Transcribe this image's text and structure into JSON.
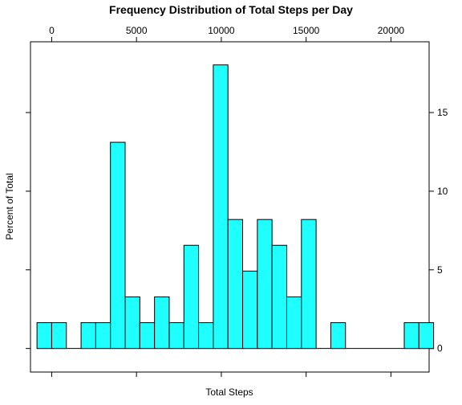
{
  "chart_data": {
    "type": "bar",
    "title": "Frequency Distribution of Total Steps per Day",
    "xlabel": "Total Steps",
    "ylabel": "Percent of Total",
    "bar_color": "#20ffff",
    "xlim": [
      -1250,
      22250
    ],
    "ylim": [
      -1.5,
      19.5
    ],
    "xticks": [
      0,
      5000,
      10000,
      15000,
      20000
    ],
    "yticks": [
      0,
      5,
      10,
      15
    ],
    "bin_width": 866,
    "bins": [
      {
        "start": -866,
        "end": 0,
        "value": 1.64
      },
      {
        "start": 0,
        "end": 866,
        "value": 1.64
      },
      {
        "start": 1732,
        "end": 2598,
        "value": 1.64
      },
      {
        "start": 2598,
        "end": 3464,
        "value": 1.64
      },
      {
        "start": 3464,
        "end": 4330,
        "value": 13.11
      },
      {
        "start": 4330,
        "end": 5196,
        "value": 3.28
      },
      {
        "start": 5196,
        "end": 6062,
        "value": 1.64
      },
      {
        "start": 6062,
        "end": 6928,
        "value": 3.28
      },
      {
        "start": 6928,
        "end": 7794,
        "value": 1.64
      },
      {
        "start": 7794,
        "end": 8660,
        "value": 6.56
      },
      {
        "start": 8660,
        "end": 9526,
        "value": 1.64
      },
      {
        "start": 9526,
        "end": 10392,
        "value": 18.03
      },
      {
        "start": 10392,
        "end": 11258,
        "value": 8.2
      },
      {
        "start": 11258,
        "end": 12124,
        "value": 4.92
      },
      {
        "start": 12124,
        "end": 12990,
        "value": 8.2
      },
      {
        "start": 12990,
        "end": 13856,
        "value": 6.56
      },
      {
        "start": 13856,
        "end": 14722,
        "value": 3.28
      },
      {
        "start": 14722,
        "end": 15588,
        "value": 8.2
      },
      {
        "start": 16454,
        "end": 17320,
        "value": 1.64
      },
      {
        "start": 20784,
        "end": 21650,
        "value": 1.64
      },
      {
        "start": 21650,
        "end": 22516,
        "value": 1.64
      }
    ],
    "baseline_range": [
      -866,
      22516
    ]
  }
}
